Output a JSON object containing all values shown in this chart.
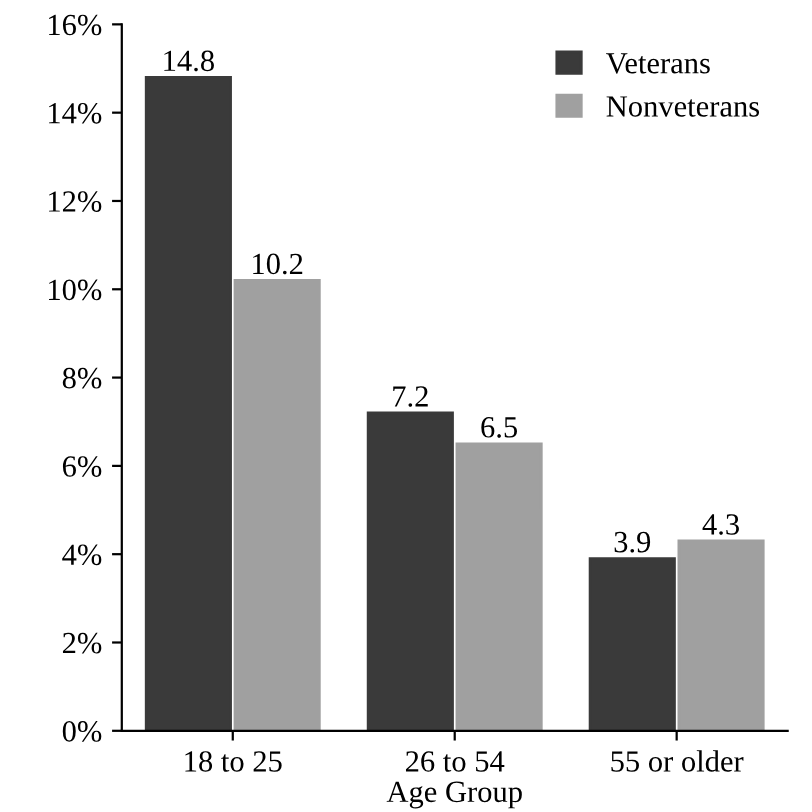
{
  "chart_data": {
    "type": "bar",
    "xlabel": "Age Group",
    "categories": [
      "18 to 25",
      "26 to 54",
      "55 or older"
    ],
    "series": [
      {
        "name": "Veterans",
        "color": "#3a3a3a",
        "values": [
          14.8,
          7.2,
          3.9
        ]
      },
      {
        "name": "Nonveterans",
        "color": "#a0a0a0",
        "values": [
          10.2,
          6.5,
          4.3
        ]
      }
    ],
    "ylim": [
      0,
      16
    ],
    "yticks": [
      {
        "value": 0,
        "label": "0%"
      },
      {
        "value": 2,
        "label": "2%"
      },
      {
        "value": 4,
        "label": "4%"
      },
      {
        "value": 6,
        "label": "6%"
      },
      {
        "value": 8,
        "label": "8%"
      },
      {
        "value": 10,
        "label": "10%"
      },
      {
        "value": 12,
        "label": "12%"
      },
      {
        "value": 14,
        "label": "14%"
      },
      {
        "value": 16,
        "label": "16%"
      }
    ],
    "data_labels": true,
    "legend": "top right",
    "grid": false
  }
}
